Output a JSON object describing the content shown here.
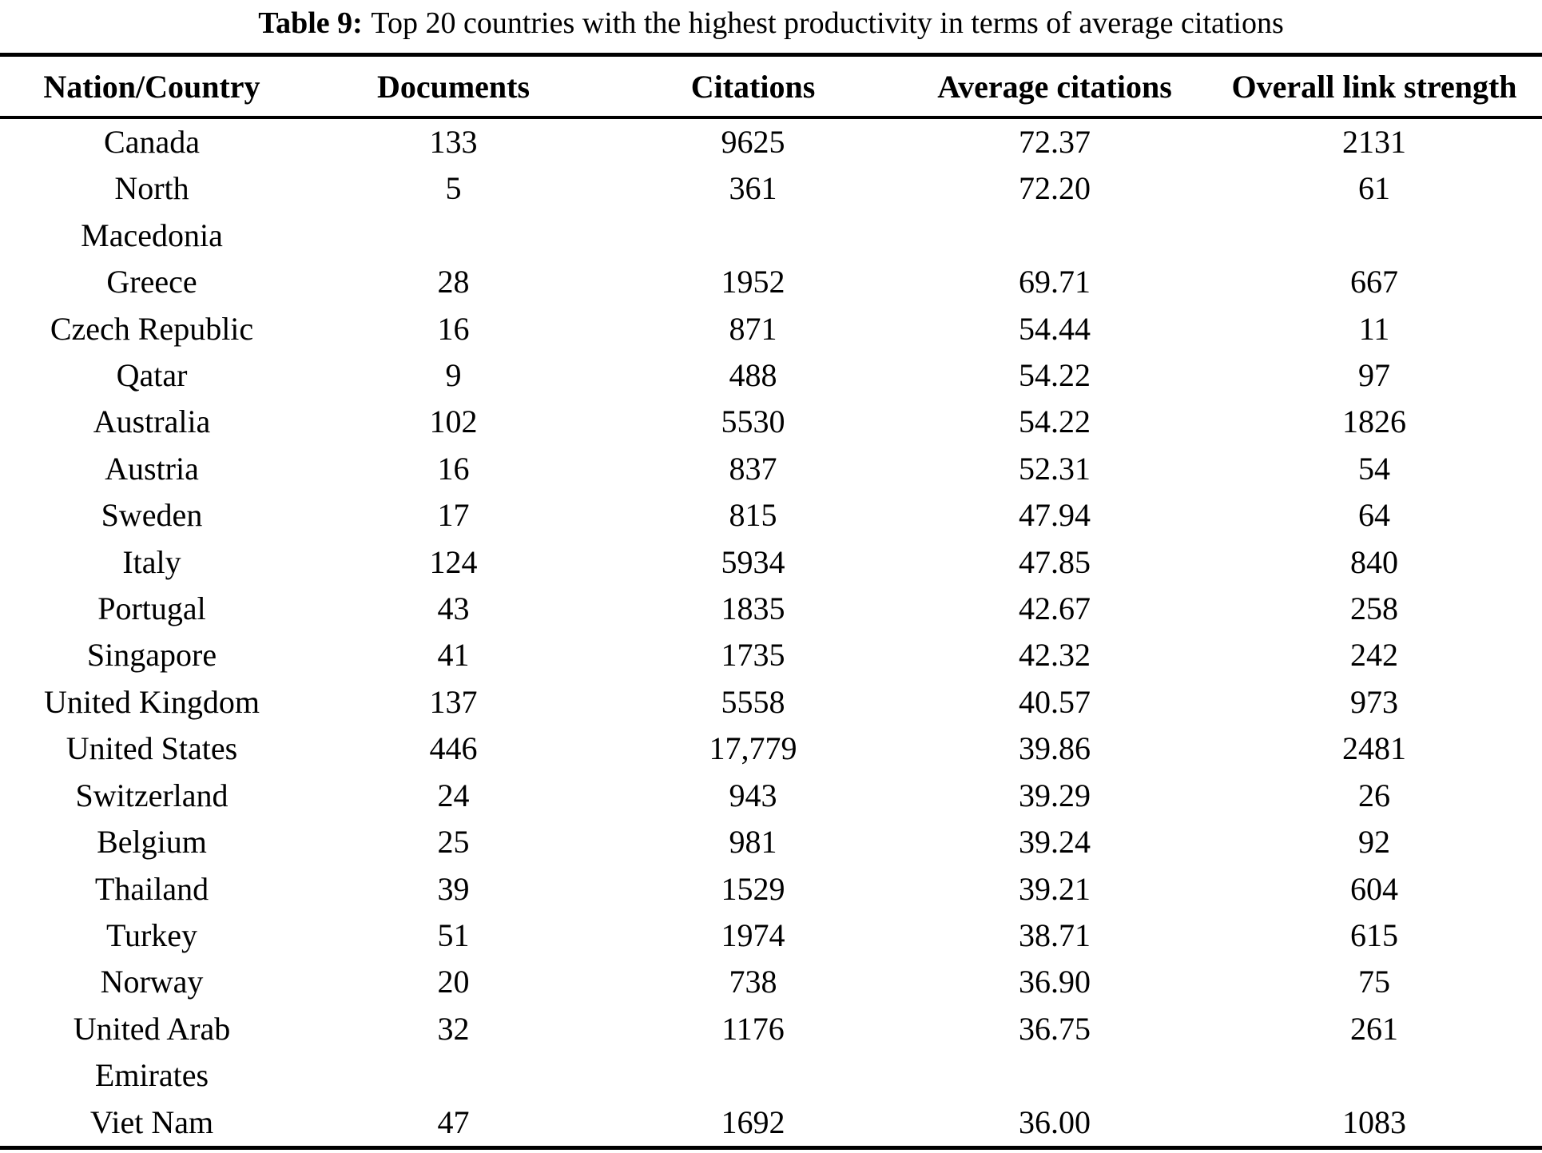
{
  "caption": {
    "label": "Table 9:",
    "text": "Top 20 countries with the highest productivity in terms of average citations"
  },
  "table": {
    "columns": [
      "Nation/Country",
      "Documents",
      "Citations",
      "Average citations",
      "Overall link strength"
    ],
    "rows": [
      {
        "country": "Canada",
        "documents": "133",
        "citations": "9625",
        "avg_citations": "72.37",
        "link_strength": "2131"
      },
      {
        "country": "North\nMacedonia",
        "documents": "5",
        "citations": "361",
        "avg_citations": "72.20",
        "link_strength": "61"
      },
      {
        "country": "Greece",
        "documents": "28",
        "citations": "1952",
        "avg_citations": "69.71",
        "link_strength": "667"
      },
      {
        "country": "Czech Republic",
        "documents": "16",
        "citations": "871",
        "avg_citations": "54.44",
        "link_strength": "11"
      },
      {
        "country": "Qatar",
        "documents": "9",
        "citations": "488",
        "avg_citations": "54.22",
        "link_strength": "97"
      },
      {
        "country": "Australia",
        "documents": "102",
        "citations": "5530",
        "avg_citations": "54.22",
        "link_strength": "1826"
      },
      {
        "country": "Austria",
        "documents": "16",
        "citations": "837",
        "avg_citations": "52.31",
        "link_strength": "54"
      },
      {
        "country": "Sweden",
        "documents": "17",
        "citations": "815",
        "avg_citations": "47.94",
        "link_strength": "64"
      },
      {
        "country": "Italy",
        "documents": "124",
        "citations": "5934",
        "avg_citations": "47.85",
        "link_strength": "840"
      },
      {
        "country": "Portugal",
        "documents": "43",
        "citations": "1835",
        "avg_citations": "42.67",
        "link_strength": "258"
      },
      {
        "country": "Singapore",
        "documents": "41",
        "citations": "1735",
        "avg_citations": "42.32",
        "link_strength": "242"
      },
      {
        "country": "United Kingdom",
        "documents": "137",
        "citations": "5558",
        "avg_citations": "40.57",
        "link_strength": "973"
      },
      {
        "country": "United States",
        "documents": "446",
        "citations": "17,779",
        "avg_citations": "39.86",
        "link_strength": "2481"
      },
      {
        "country": "Switzerland",
        "documents": "24",
        "citations": "943",
        "avg_citations": "39.29",
        "link_strength": "26"
      },
      {
        "country": "Belgium",
        "documents": "25",
        "citations": "981",
        "avg_citations": "39.24",
        "link_strength": "92"
      },
      {
        "country": "Thailand",
        "documents": "39",
        "citations": "1529",
        "avg_citations": "39.21",
        "link_strength": "604"
      },
      {
        "country": "Turkey",
        "documents": "51",
        "citations": "1974",
        "avg_citations": "38.71",
        "link_strength": "615"
      },
      {
        "country": "Norway",
        "documents": "20",
        "citations": "738",
        "avg_citations": "36.90",
        "link_strength": "75"
      },
      {
        "country": "United Arab\nEmirates",
        "documents": "32",
        "citations": "1176",
        "avg_citations": "36.75",
        "link_strength": "261"
      },
      {
        "country": "Viet Nam",
        "documents": "47",
        "citations": "1692",
        "avg_citations": "36.00",
        "link_strength": "1083"
      }
    ]
  },
  "chart_data": {
    "type": "table",
    "title": "Table 9: Top 20 countries with the highest productivity in terms of average citations",
    "columns": [
      "Nation/Country",
      "Documents",
      "Citations",
      "Average citations",
      "Overall link strength"
    ],
    "rows": [
      [
        "Canada",
        133,
        9625,
        72.37,
        2131
      ],
      [
        "North Macedonia",
        5,
        361,
        72.2,
        61
      ],
      [
        "Greece",
        28,
        1952,
        69.71,
        667
      ],
      [
        "Czech Republic",
        16,
        871,
        54.44,
        11
      ],
      [
        "Qatar",
        9,
        488,
        54.22,
        97
      ],
      [
        "Australia",
        102,
        5530,
        54.22,
        1826
      ],
      [
        "Austria",
        16,
        837,
        52.31,
        54
      ],
      [
        "Sweden",
        17,
        815,
        47.94,
        64
      ],
      [
        "Italy",
        124,
        5934,
        47.85,
        840
      ],
      [
        "Portugal",
        43,
        1835,
        42.67,
        258
      ],
      [
        "Singapore",
        41,
        1735,
        42.32,
        242
      ],
      [
        "United Kingdom",
        137,
        5558,
        40.57,
        973
      ],
      [
        "United States",
        446,
        17779,
        39.86,
        2481
      ],
      [
        "Switzerland",
        24,
        943,
        39.29,
        26
      ],
      [
        "Belgium",
        25,
        981,
        39.24,
        92
      ],
      [
        "Thailand",
        39,
        1529,
        39.21,
        604
      ],
      [
        "Turkey",
        51,
        1974,
        38.71,
        615
      ],
      [
        "Norway",
        20,
        738,
        36.9,
        75
      ],
      [
        "United Arab Emirates",
        32,
        1176,
        36.75,
        261
      ],
      [
        "Viet Nam",
        47,
        1692,
        36.0,
        1083
      ]
    ]
  }
}
